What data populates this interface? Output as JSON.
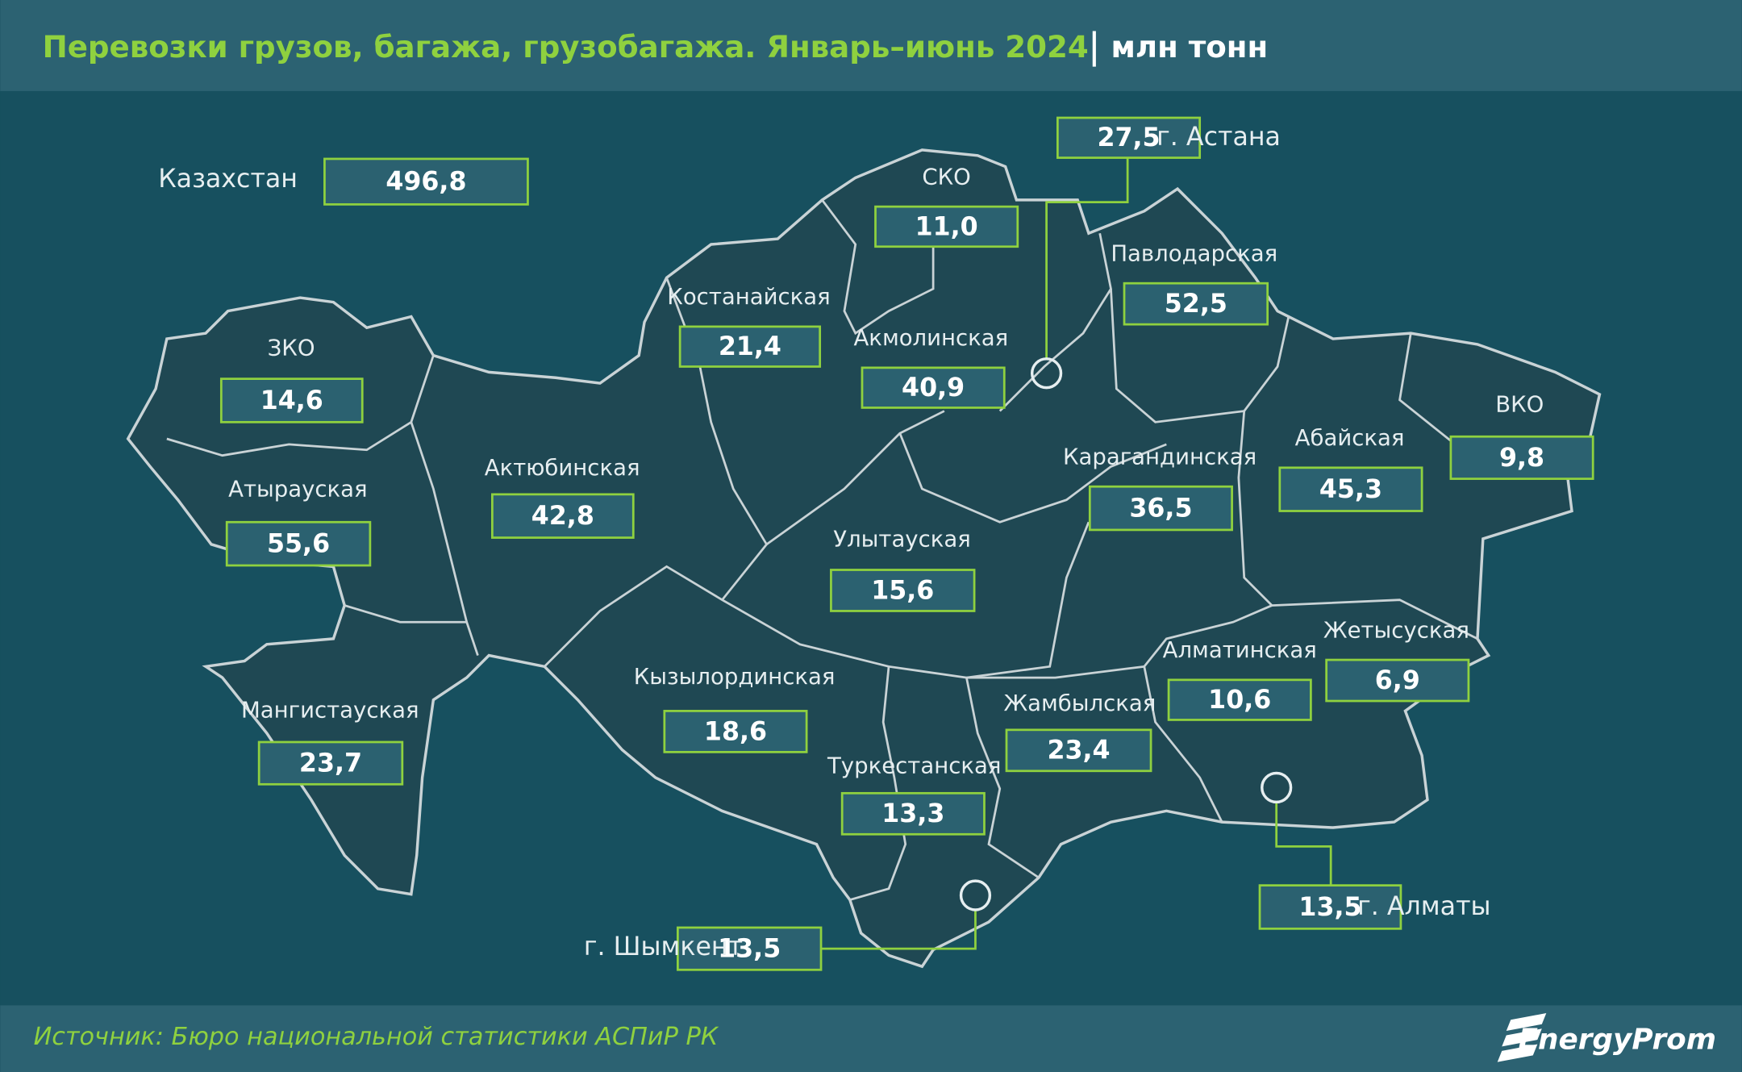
{
  "header": {
    "title": "Перевозки грузов, багажа, грузобагажа. Январь–июнь 2024",
    "unit": "млн тонн"
  },
  "total": {
    "name": "Казахстан",
    "value": "496,8"
  },
  "regions": [
    {
      "name": "СКО",
      "value": "11,0"
    },
    {
      "name": "Павлодарская",
      "value": "52,5"
    },
    {
      "name": "Костанайская",
      "value": "21,4"
    },
    {
      "name": "Акмолинская",
      "value": "40,9"
    },
    {
      "name": "ЗКО",
      "value": "14,6"
    },
    {
      "name": "ВКО",
      "value": "9,8"
    },
    {
      "name": "Абайская",
      "value": "45,3"
    },
    {
      "name": "Карагандинская",
      "value": "36,5"
    },
    {
      "name": "Актюбинская",
      "value": "42,8"
    },
    {
      "name": "Атырауская",
      "value": "55,6"
    },
    {
      "name": "Улытауская",
      "value": "15,6"
    },
    {
      "name": "Жетысуская",
      "value": "6,9"
    },
    {
      "name": "Алматинская",
      "value": "10,6"
    },
    {
      "name": "Кызылординская",
      "value": "18,6"
    },
    {
      "name": "Жамбылская",
      "value": "23,4"
    },
    {
      "name": "Мангистауская",
      "value": "23,7"
    },
    {
      "name": "Туркестанская",
      "value": "13,3"
    }
  ],
  "cities": [
    {
      "name": "г. Астана",
      "value": "27,5"
    },
    {
      "name": "г. Алматы",
      "value": "13,5"
    },
    {
      "name": "г. Шымкент",
      "value": "13,5"
    }
  ],
  "footer": {
    "source": "Источник: Бюро национальной статистики АСПиР РК",
    "logo": "EnergyProm"
  }
}
